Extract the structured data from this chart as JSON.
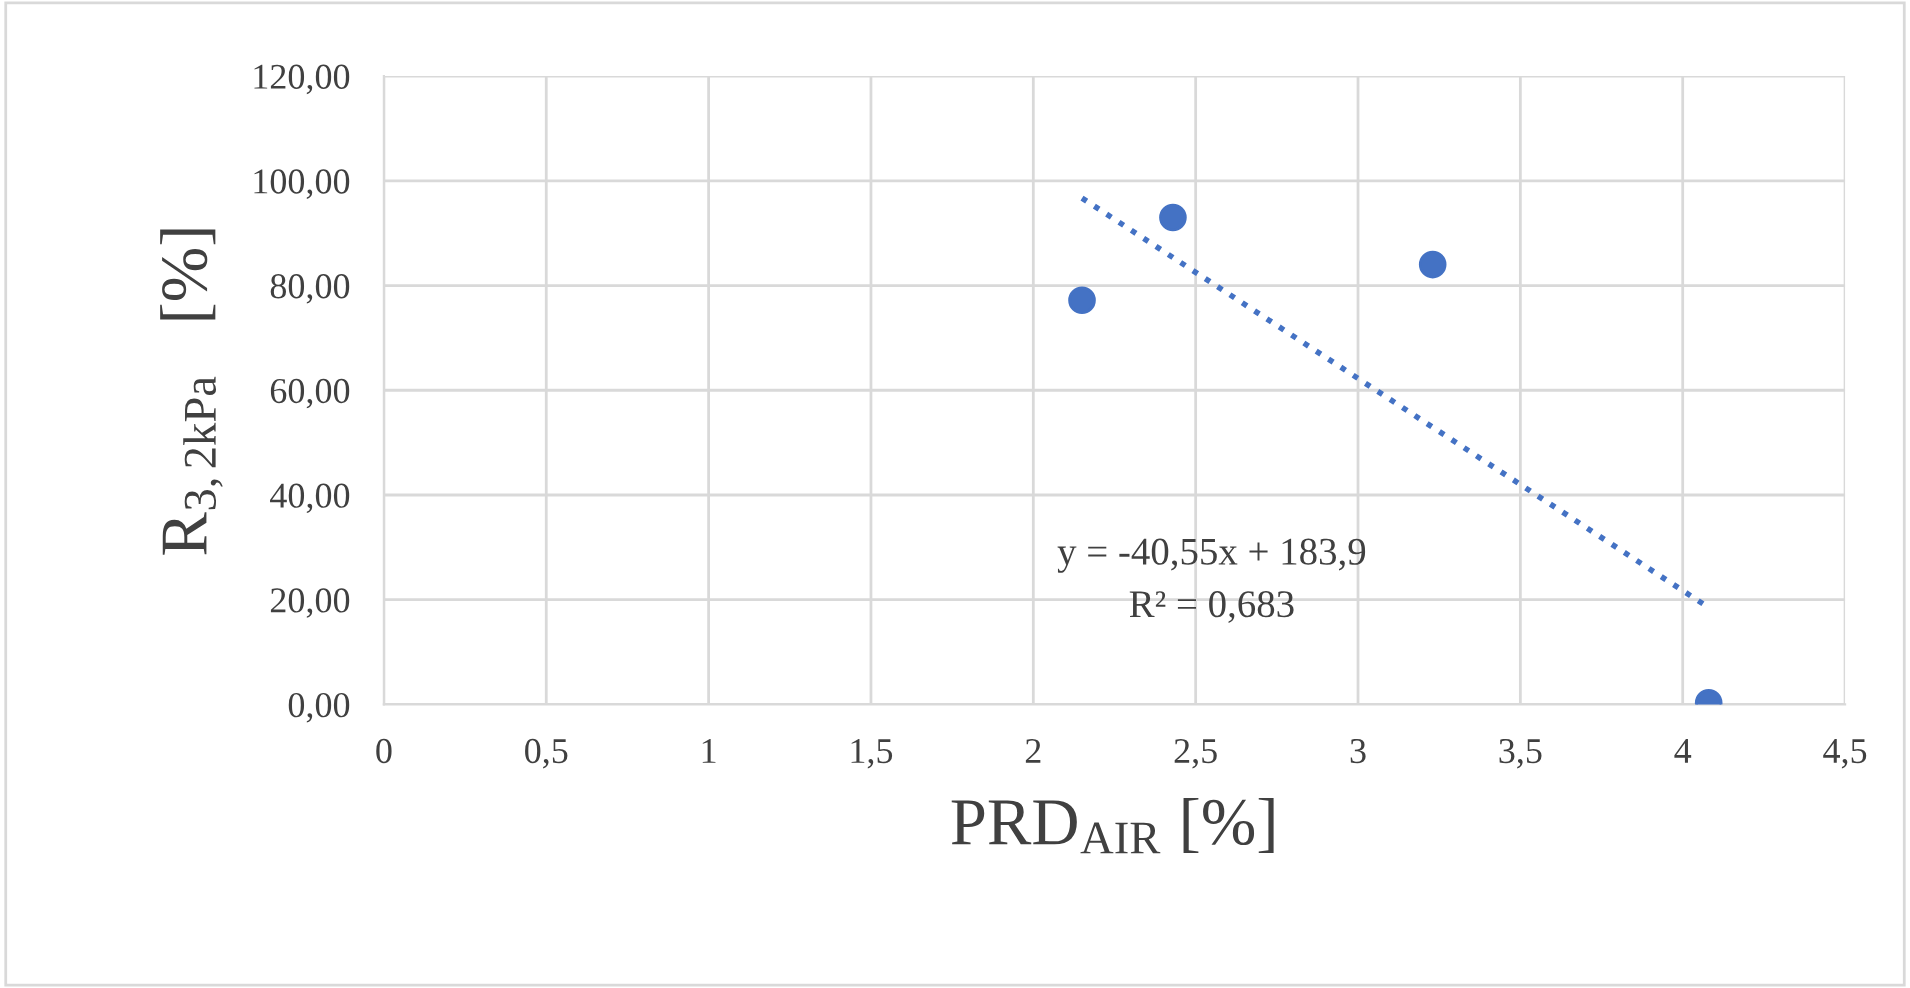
{
  "chart_data": {
    "type": "scatter",
    "xlabel": "PRD$_{AIR}$ [%]",
    "ylabel": "R$_{3,2kPa}$   [%]",
    "series": [
      {
        "type": "scatter",
        "color": "#4472c4",
        "marker": "circle",
        "x": [
          2.15,
          2.43,
          3.23,
          4.08
        ],
        "values": [
          77.2,
          93.0,
          84.0,
          0.3
        ]
      },
      {
        "type": "line",
        "color": "#4472c4",
        "line_style": "dotted",
        "marker": "none",
        "x": [
          2.15,
          4.08
        ],
        "values": [
          96.7,
          18.5
        ]
      }
    ],
    "annotations": [
      "y = -40,55x + 183,9",
      "R² = 0,683"
    ],
    "xlim": [
      0,
      4.5
    ],
    "ylim": [
      0,
      120
    ],
    "xticks": [
      0,
      {
        "value": 0.5,
        "label": "0,5"
      },
      1,
      {
        "value": 1.5,
        "label": "1,5"
      },
      2,
      {
        "value": 2.5,
        "label": "2,5"
      },
      3,
      {
        "value": 3.5,
        "label": "3,5"
      },
      4,
      {
        "value": 4.5,
        "label": "4,5"
      }
    ],
    "yticks": [
      {
        "value": 0,
        "label": "0,00"
      },
      {
        "value": 20,
        "label": "20,00"
      },
      {
        "value": 40,
        "label": "40,00"
      },
      {
        "value": 60,
        "label": "60,00"
      },
      {
        "value": 80,
        "label": "80,00"
      },
      {
        "value": 100,
        "label": "100,00"
      },
      {
        "value": 120,
        "label": "120,00"
      }
    ],
    "grid": true,
    "legend": false
  }
}
